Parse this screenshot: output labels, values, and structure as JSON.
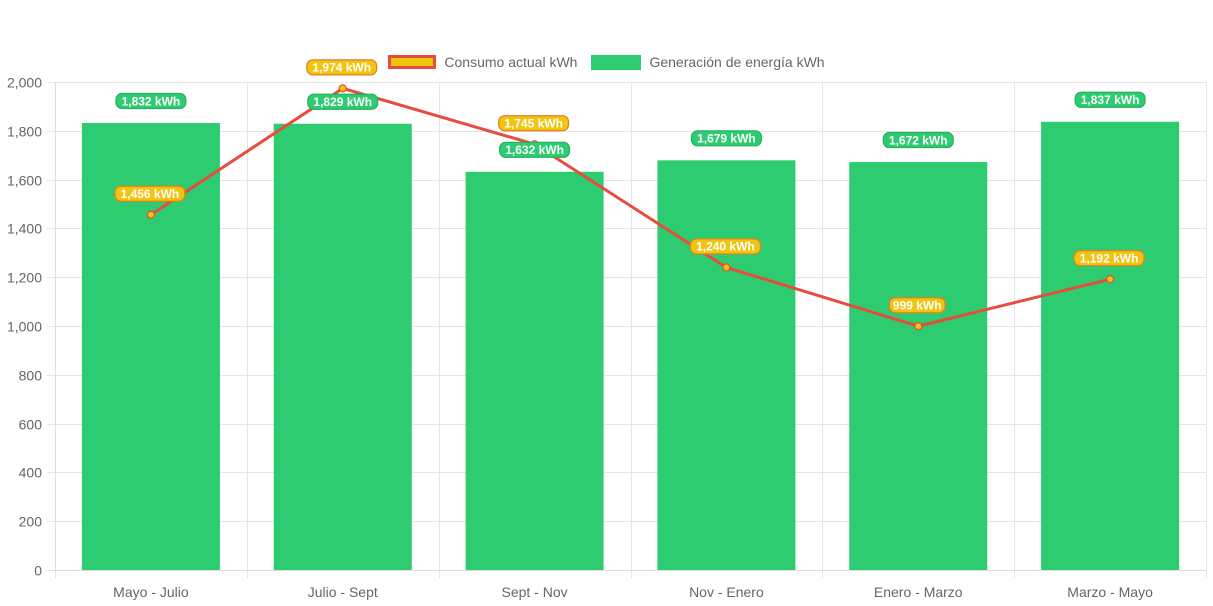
{
  "legend": {
    "line_label": "Consumo actual kWh",
    "bar_label": "Generación de energía kWh"
  },
  "colors": {
    "bar": "#2ecc71",
    "line": "#e74c3c",
    "point": "#f1c40f",
    "line_label_bg": "#f1c40f",
    "bar_label_bg": "#2ecc71",
    "grid": "#e5e5e5",
    "tick_text": "#666666"
  },
  "chart_data": {
    "type": "bar",
    "categories": [
      "Mayo - Julio",
      "Julio - Sept",
      "Sept - Nov",
      "Nov - Enero",
      "Enero - Marzo",
      "Marzo - Mayo"
    ],
    "series": [
      {
        "name": "Generación de energía kWh",
        "type": "bar",
        "values": [
          1832,
          1829,
          1632,
          1679,
          1672,
          1837
        ],
        "labels": [
          "1,832 kWh",
          "1,829 kWh",
          "1,632 kWh",
          "1,679 kWh",
          "1,672 kWh",
          "1,837 kWh"
        ]
      },
      {
        "name": "Consumo actual kWh",
        "type": "line",
        "values": [
          1456,
          1974,
          1745,
          1240,
          999,
          1192
        ],
        "labels": [
          "1,456 kWh",
          "1,974 kWh",
          "1,745 kWh",
          "1,240 kWh",
          "999 kWh",
          "1,192 kWh"
        ]
      }
    ],
    "ylim": [
      0,
      2000
    ],
    "yticks": [
      0,
      200,
      400,
      600,
      800,
      1000,
      1200,
      1400,
      1600,
      1800,
      2000
    ],
    "ytick_labels": [
      "0",
      "200",
      "400",
      "600",
      "800",
      "1,000",
      "1,200",
      "1,400",
      "1,600",
      "1,800",
      "2,000"
    ],
    "grid": true,
    "legend_position": "top-center",
    "title": "",
    "xlabel": "",
    "ylabel": ""
  }
}
